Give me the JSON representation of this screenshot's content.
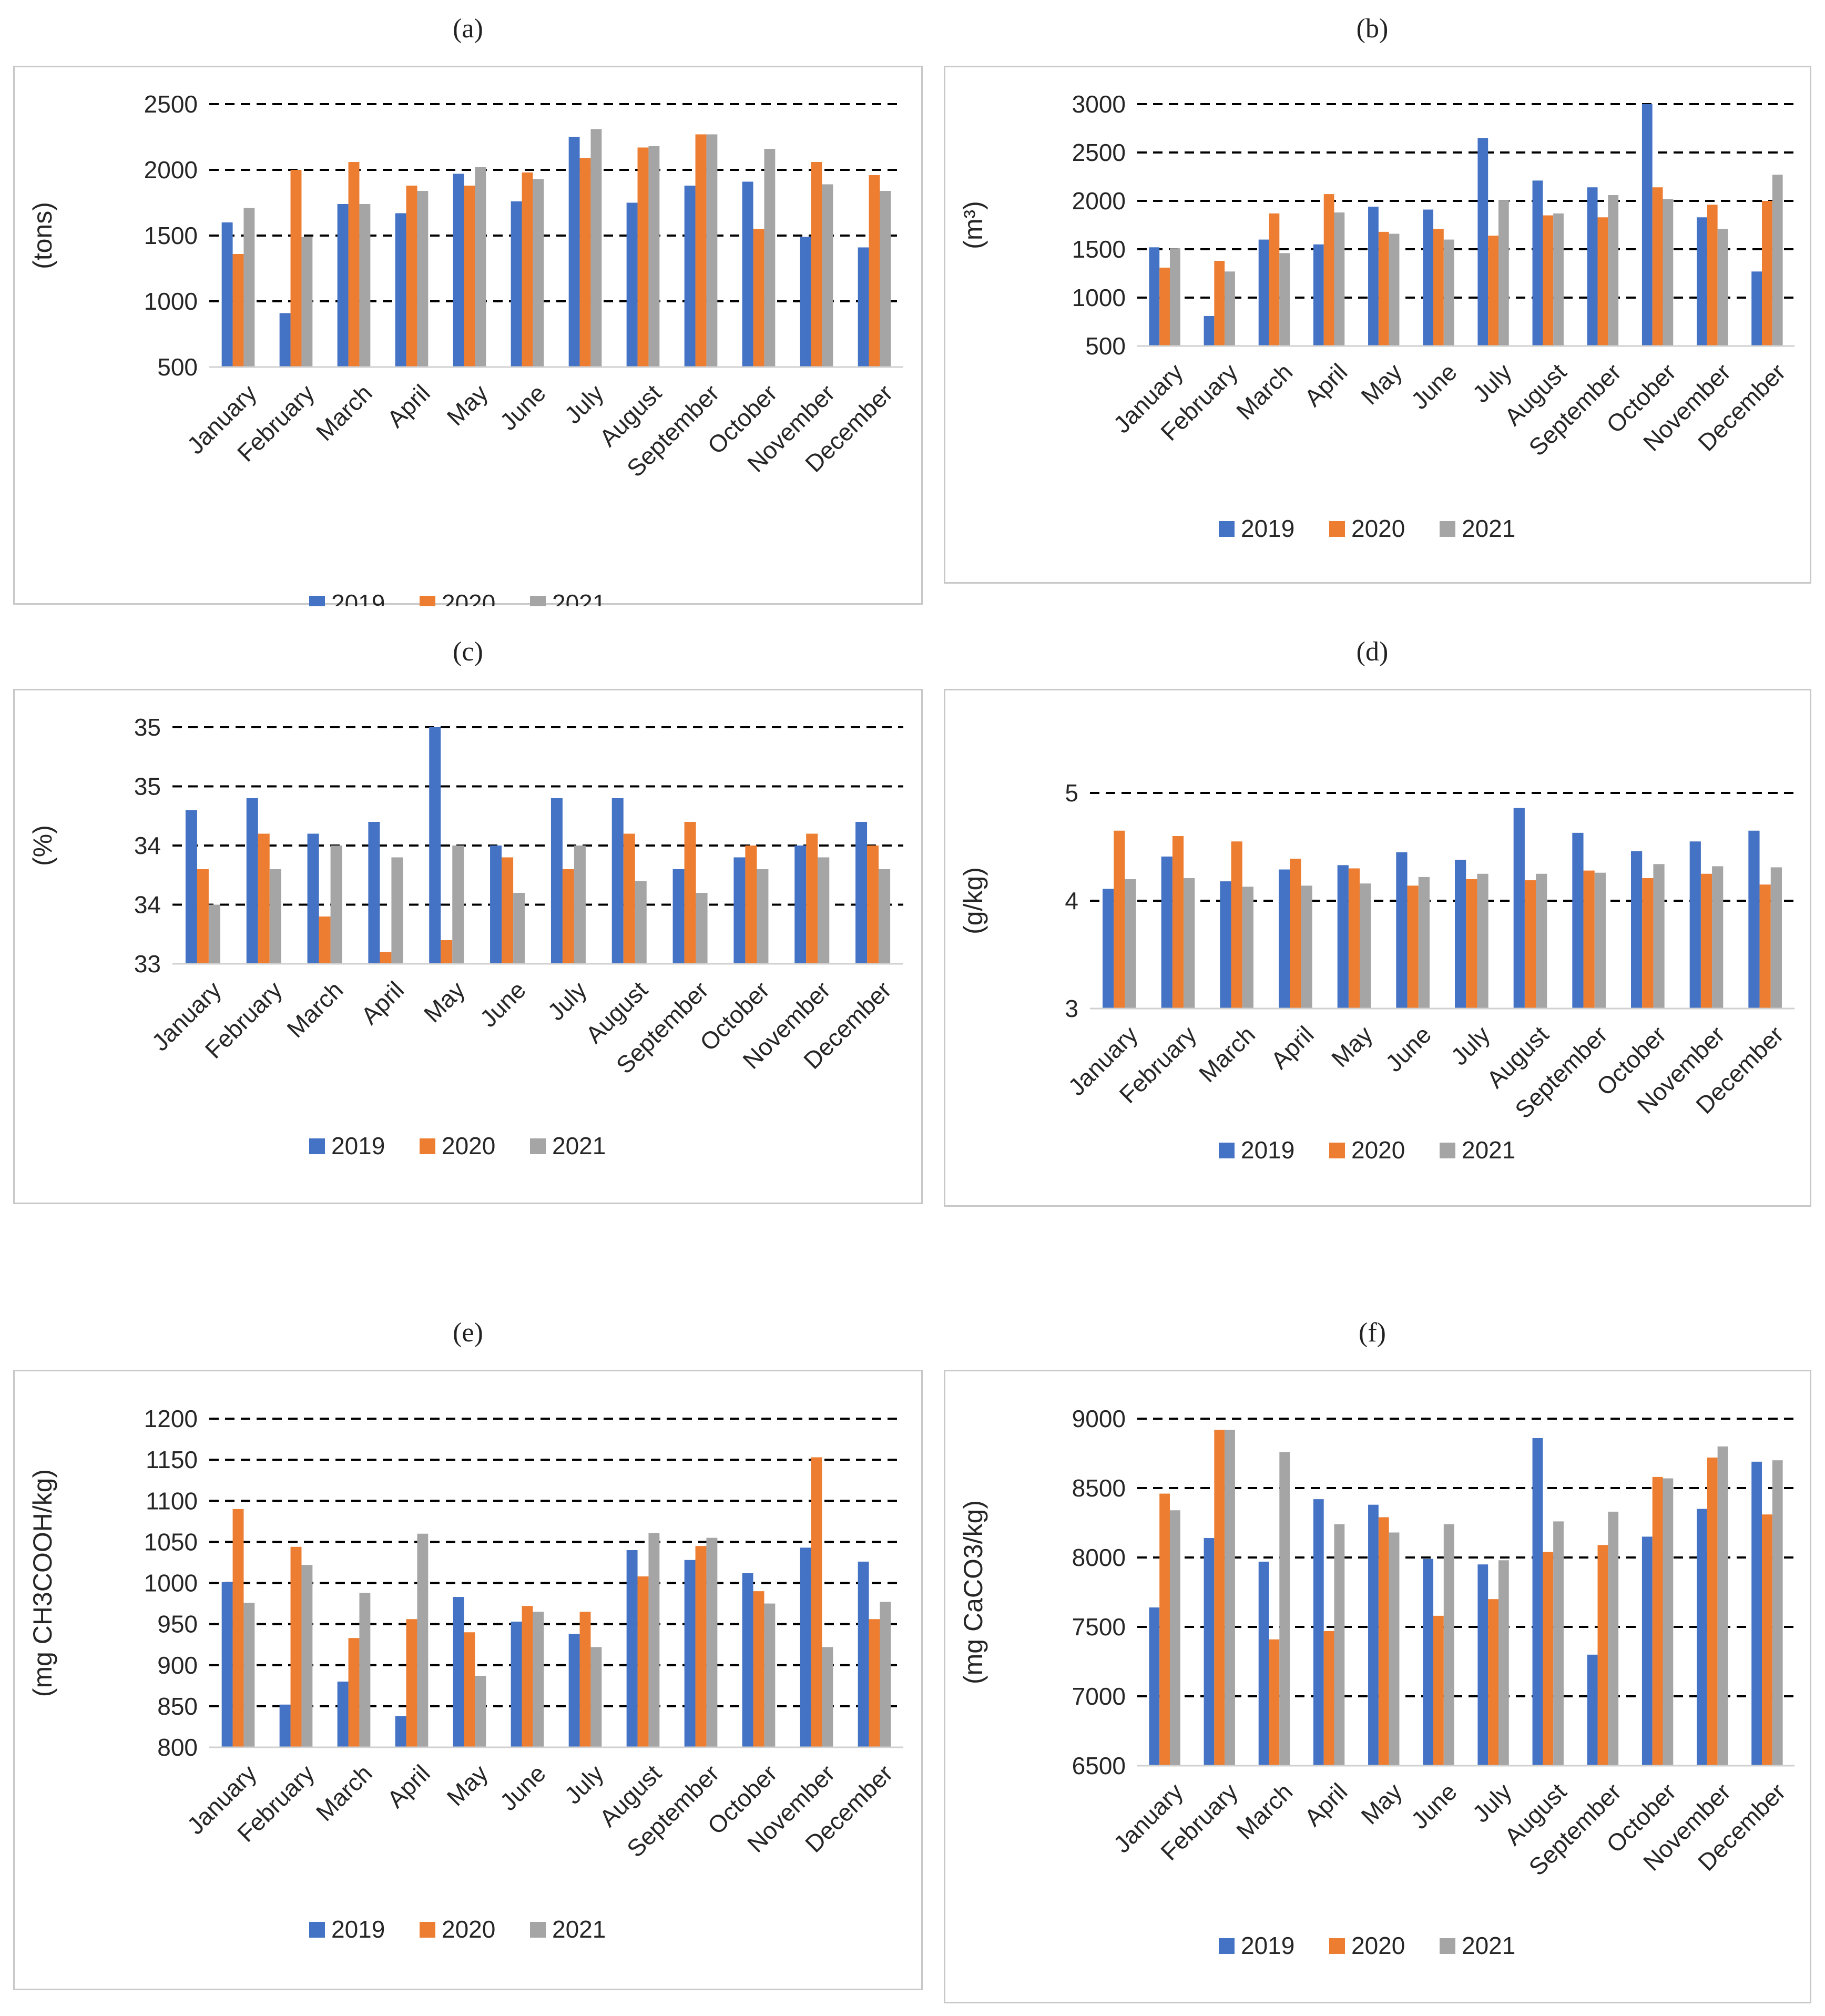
{
  "legend": [
    "2019",
    "2020",
    "2021"
  ],
  "colors": {
    "s2019": "#4472C4",
    "s2020": "#ED7D31",
    "s2021": "#A5A5A5",
    "grid": "#000000"
  },
  "months": [
    "January",
    "February",
    "March",
    "April",
    "May",
    "June",
    "July",
    "August",
    "September",
    "October",
    "November",
    "December"
  ],
  "panels": {
    "a": {
      "label": "(a)"
    },
    "b": {
      "label": "(b)"
    },
    "c": {
      "label": "(c)"
    },
    "d": {
      "label": "(d)"
    },
    "e": {
      "label": "(e)"
    },
    "f": {
      "label": "(f)"
    }
  },
  "chart_data": [
    {
      "id": "a",
      "type": "bar",
      "title": "",
      "ylabel": "(tons)",
      "ylim": [
        500,
        2500
      ],
      "yticks": [
        500,
        1000,
        1500,
        2000,
        2500
      ],
      "ytick_labels": [
        "500",
        "1000",
        "1500",
        "2000",
        "2500"
      ],
      "categories": [
        "January",
        "February",
        "March",
        "April",
        "May",
        "June",
        "July",
        "August",
        "September",
        "October",
        "November",
        "December"
      ],
      "series": [
        {
          "name": "2019",
          "values": [
            1600,
            910,
            1740,
            1670,
            1970,
            1760,
            2250,
            1750,
            1880,
            1910,
            1490,
            1410
          ]
        },
        {
          "name": "2020",
          "values": [
            1360,
            2000,
            2060,
            1880,
            1880,
            1980,
            2090,
            2170,
            2270,
            1550,
            2060,
            1960
          ]
        },
        {
          "name": "2021",
          "values": [
            1710,
            1490,
            1740,
            1840,
            2020,
            1930,
            2310,
            2180,
            2270,
            2160,
            1890,
            1840
          ]
        }
      ]
    },
    {
      "id": "b",
      "type": "bar",
      "title": "",
      "ylabel": "(m³)",
      "ylim": [
        500,
        3000
      ],
      "yticks": [
        500,
        1000,
        1500,
        2000,
        2500,
        3000
      ],
      "ytick_labels": [
        "500",
        "1000",
        "1500",
        "2000",
        "2500",
        "3000"
      ],
      "categories": [
        "January",
        "February",
        "March",
        "April",
        "May",
        "June",
        "July",
        "August",
        "September",
        "October",
        "November",
        "December"
      ],
      "series": [
        {
          "name": "2019",
          "values": [
            1520,
            810,
            1600,
            1550,
            1940,
            1910,
            2650,
            2210,
            2140,
            3010,
            1830,
            1270
          ]
        },
        {
          "name": "2020",
          "values": [
            1310,
            1380,
            1870,
            2070,
            1680,
            1710,
            1640,
            1850,
            1830,
            2140,
            1960,
            2000
          ]
        },
        {
          "name": "2021",
          "values": [
            1510,
            1270,
            1460,
            1880,
            1660,
            1600,
            2010,
            1870,
            2060,
            2020,
            1710,
            2270
          ]
        }
      ]
    },
    {
      "id": "c",
      "type": "bar",
      "title": "",
      "ylabel": "(%)",
      "ylim": [
        33,
        35
      ],
      "yticks": [
        33,
        33.5,
        34,
        34.5,
        35
      ],
      "ytick_labels": [
        "33",
        "34",
        "34",
        "35",
        "35"
      ],
      "categories": [
        "January",
        "February",
        "March",
        "April",
        "May",
        "June",
        "July",
        "August",
        "September",
        "October",
        "November",
        "December"
      ],
      "series": [
        {
          "name": "2019",
          "values": [
            34.3,
            34.4,
            34.1,
            34.2,
            35.0,
            34.0,
            34.4,
            34.4,
            33.8,
            33.9,
            34.0,
            34.2
          ]
        },
        {
          "name": "2020",
          "values": [
            33.8,
            34.1,
            33.4,
            33.1,
            33.2,
            33.9,
            33.8,
            34.1,
            34.2,
            34.0,
            34.1,
            34.0
          ]
        },
        {
          "name": "2021",
          "values": [
            33.5,
            33.8,
            34.0,
            33.9,
            34.0,
            33.6,
            34.0,
            33.7,
            33.6,
            33.8,
            33.9,
            33.8
          ]
        }
      ]
    },
    {
      "id": "d",
      "type": "bar",
      "title": "",
      "ylabel": "(g/kg)",
      "ylim": [
        3,
        5
      ],
      "yticks": [
        3,
        4,
        5
      ],
      "ytick_labels": [
        "3",
        "4",
        "5"
      ],
      "categories": [
        "January",
        "February",
        "March",
        "April",
        "May",
        "June",
        "July",
        "August",
        "September",
        "October",
        "November",
        "December"
      ],
      "series": [
        {
          "name": "2019",
          "values": [
            4.11,
            4.41,
            4.18,
            4.29,
            4.33,
            4.45,
            4.38,
            4.86,
            4.63,
            4.46,
            4.55,
            4.65
          ]
        },
        {
          "name": "2020",
          "values": [
            4.65,
            4.6,
            4.55,
            4.39,
            4.3,
            4.14,
            4.2,
            4.19,
            4.28,
            4.21,
            4.25,
            4.15
          ]
        },
        {
          "name": "2021",
          "values": [
            4.2,
            4.21,
            4.13,
            4.14,
            4.16,
            4.22,
            4.25,
            4.25,
            4.26,
            4.34,
            4.32,
            4.31
          ]
        }
      ]
    },
    {
      "id": "e",
      "type": "bar",
      "title": "",
      "ylabel": "(mg CH3COOH/kg)",
      "ylim": [
        800,
        1200
      ],
      "yticks": [
        800,
        850,
        900,
        950,
        1000,
        1050,
        1100,
        1150,
        1200
      ],
      "ytick_labels": [
        "800",
        "850",
        "900",
        "950",
        "1000",
        "1050",
        "1100",
        "1150",
        "1200"
      ],
      "categories": [
        "January",
        "February",
        "March",
        "April",
        "May",
        "June",
        "July",
        "August",
        "September",
        "October",
        "November",
        "December"
      ],
      "series": [
        {
          "name": "2019",
          "values": [
            1001,
            852,
            880,
            838,
            983,
            953,
            938,
            1040,
            1028,
            1012,
            1043,
            1026
          ]
        },
        {
          "name": "2020",
          "values": [
            1090,
            1044,
            933,
            956,
            940,
            972,
            965,
            1008,
            1045,
            990,
            1153,
            956
          ]
        },
        {
          "name": "2021",
          "values": [
            976,
            1022,
            988,
            1060,
            887,
            965,
            922,
            1061,
            1055,
            975,
            922,
            977
          ]
        }
      ]
    },
    {
      "id": "f",
      "type": "bar",
      "title": "",
      "ylabel": "(mg CaCO3/kg)",
      "ylim": [
        6500,
        9000
      ],
      "yticks": [
        6500,
        7000,
        7500,
        8000,
        8500,
        9000
      ],
      "ytick_labels": [
        "6500",
        "7000",
        "7500",
        "8000",
        "8500",
        "9000"
      ],
      "categories": [
        "January",
        "February",
        "March",
        "April",
        "May",
        "June",
        "July",
        "August",
        "September",
        "October",
        "November",
        "December"
      ],
      "series": [
        {
          "name": "2019",
          "values": [
            7640,
            8140,
            7970,
            8420,
            8380,
            7990,
            7950,
            8860,
            7300,
            8150,
            8350,
            8690
          ]
        },
        {
          "name": "2020",
          "values": [
            8460,
            8920,
            7410,
            7470,
            8290,
            7580,
            7700,
            8040,
            8090,
            8580,
            8720,
            8310
          ]
        },
        {
          "name": "2021",
          "values": [
            8340,
            8920,
            8760,
            8240,
            8180,
            8240,
            7980,
            8260,
            8330,
            8570,
            8800,
            8700
          ]
        }
      ]
    }
  ]
}
